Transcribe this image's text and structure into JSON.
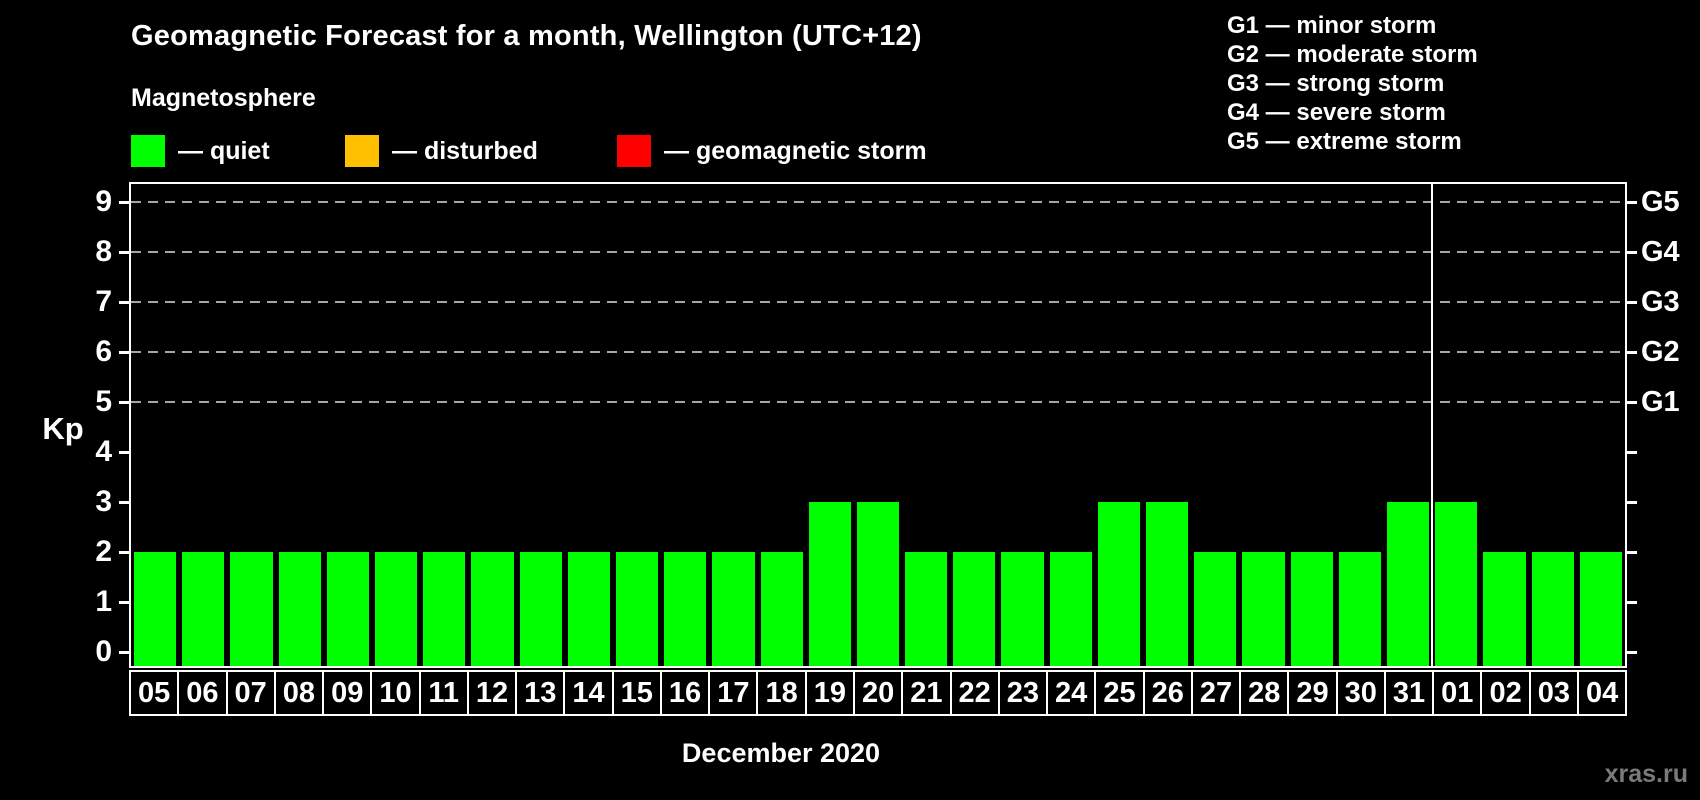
{
  "header": {
    "title": "Geomagnetic Forecast for a month, Wellington (UTC+12)",
    "subtitle": "Magnetosphere"
  },
  "legend": {
    "items": [
      {
        "name": "quiet",
        "color": "#00ff00",
        "label": "— quiet"
      },
      {
        "name": "disturbed",
        "color": "#ffc000",
        "label": "— disturbed"
      },
      {
        "name": "storm",
        "color": "#ff0000",
        "label": "— geomagnetic storm"
      }
    ]
  },
  "g_scale_legend": {
    "lines": [
      "G1 — minor storm",
      "G2 — moderate storm",
      "G3 — strong storm",
      "G4 — severe storm",
      "G5 — extreme storm"
    ]
  },
  "axes": {
    "y_label": "Kp",
    "y_ticks": [
      0,
      1,
      2,
      3,
      4,
      5,
      6,
      7,
      8,
      9
    ],
    "g_ticks": [
      {
        "label": "G1",
        "kp": 5
      },
      {
        "label": "G2",
        "kp": 6
      },
      {
        "label": "G3",
        "kp": 7
      },
      {
        "label": "G4",
        "kp": 8
      },
      {
        "label": "G5",
        "kp": 9
      }
    ],
    "x_axis_label": "December 2020"
  },
  "chart_data": {
    "type": "bar",
    "title": "Geomagnetic Forecast for a month, Wellington (UTC+12)",
    "subtitle": "Magnetosphere",
    "xlabel": "December 2020",
    "ylabel": "Kp",
    "ylim": [
      0,
      9
    ],
    "grid": "dashed horizontal lines at Kp 5,6,7,8,9 (G1–G5 levels)",
    "legend_position": "top",
    "categories": [
      "05",
      "06",
      "07",
      "08",
      "09",
      "10",
      "11",
      "12",
      "13",
      "14",
      "15",
      "16",
      "17",
      "18",
      "19",
      "20",
      "21",
      "22",
      "23",
      "24",
      "25",
      "26",
      "27",
      "28",
      "29",
      "30",
      "31",
      "01",
      "02",
      "03",
      "04"
    ],
    "values": [
      2,
      2,
      2,
      2,
      2,
      2,
      2,
      2,
      2,
      2,
      2,
      2,
      2,
      2,
      3,
      3,
      2,
      2,
      2,
      2,
      3,
      3,
      2,
      2,
      2,
      2,
      3,
      3,
      2,
      2,
      2
    ],
    "status_per_day": [
      "quiet",
      "quiet",
      "quiet",
      "quiet",
      "quiet",
      "quiet",
      "quiet",
      "quiet",
      "quiet",
      "quiet",
      "quiet",
      "quiet",
      "quiet",
      "quiet",
      "quiet",
      "quiet",
      "quiet",
      "quiet",
      "quiet",
      "quiet",
      "quiet",
      "quiet",
      "quiet",
      "quiet",
      "quiet",
      "quiet",
      "quiet",
      "quiet",
      "quiet",
      "quiet",
      "quiet"
    ],
    "bar_color": "#00ff00",
    "month_boundary_after_index": 26
  },
  "colors": {
    "background": "#000000",
    "axis": "#ffffff",
    "grid": "#a6a6a6",
    "quiet": "#00ff00",
    "disturbed": "#ffc000",
    "storm": "#ff0000",
    "watermark": "#7a7a7a"
  },
  "watermark": "xras.ru"
}
